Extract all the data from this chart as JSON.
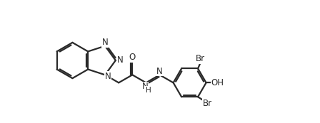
{
  "bg_color": "#ffffff",
  "bond_color": "#2a2a2a",
  "bond_width": 1.6,
  "label_color": "#2a2a2a",
  "label_fontsize": 8.5,
  "figsize": [
    4.48,
    1.73
  ],
  "dpi": 100,
  "xlim": [
    -0.5,
    10.5
  ],
  "ylim": [
    0.2,
    5.8
  ]
}
